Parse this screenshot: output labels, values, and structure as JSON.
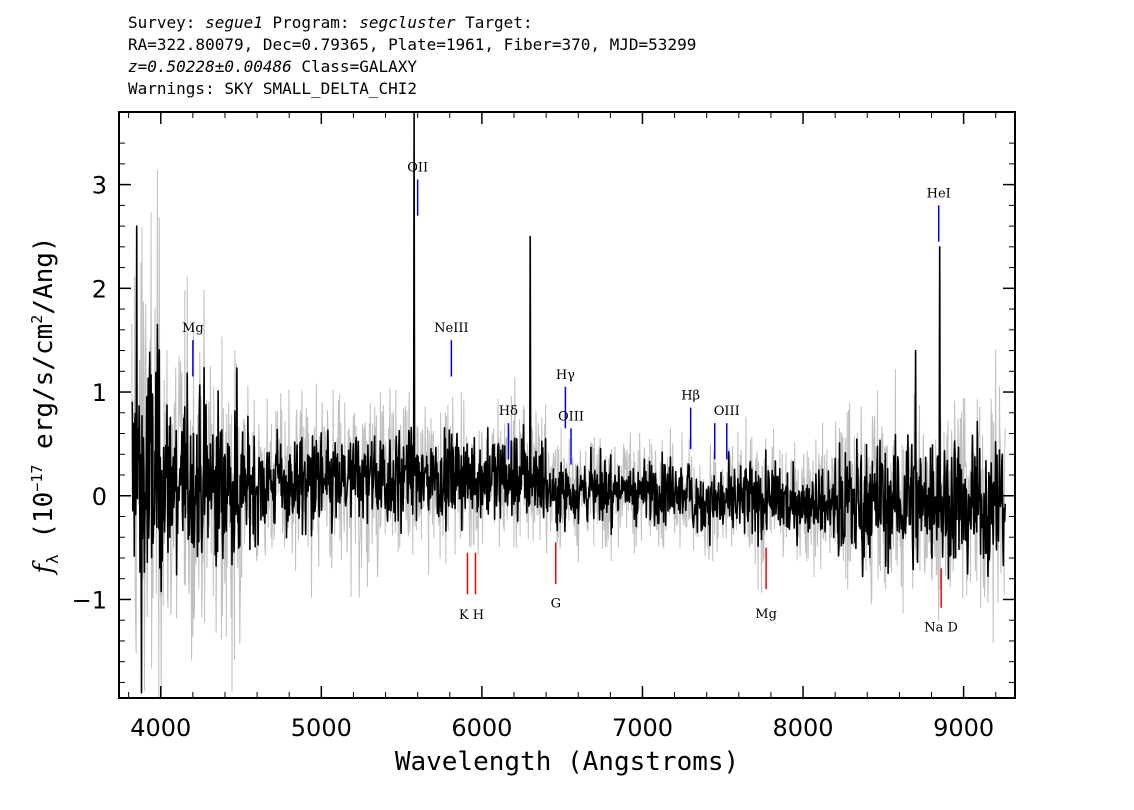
{
  "header": {
    "line1": {
      "survey_label": "Survey: ",
      "survey": "segue1",
      "program_label": " Program: ",
      "program": "segcluster",
      "target_label": " Target:"
    },
    "line2": "RA=322.80079, Dec=0.79365, Plate=1961, Fiber=370, MJD=53299",
    "line3": {
      "z": "z=0.50228±0.00486",
      "class": " Class=GALAXY"
    },
    "line4": "Warnings: SKY SMALL_DELTA_CHI2"
  },
  "chart_data": {
    "type": "line",
    "xlabel": "Wavelength (Angstroms)",
    "ylabel": "f_λ (10^-17 erg/s/cm^2/Ang)",
    "xlim": [
      3740,
      9320
    ],
    "ylim": [
      -1.95,
      3.7
    ],
    "x_ticks": [
      4000,
      5000,
      6000,
      7000,
      8000,
      9000
    ],
    "y_ticks": [
      -1,
      0,
      1,
      2,
      3
    ],
    "grid": false,
    "colors": {
      "flux": "#000000",
      "error": "#c0c0c0",
      "emission": "#0000ff",
      "absorption": "#ff0000"
    },
    "series": [
      {
        "name": "flux",
        "color": "#000000",
        "values_description": "noisy spectrum, mean ~0"
      },
      {
        "name": "error",
        "color": "#c0c0c0"
      }
    ],
    "flux_features": [
      {
        "x": 3850,
        "y": 2.6
      },
      {
        "x": 3880,
        "y": -1.9
      },
      {
        "x": 5577,
        "y": 3.7
      },
      {
        "x": 6300,
        "y": 2.5
      },
      {
        "x": 8850,
        "y": 2.4
      },
      {
        "x": 8700,
        "y": 1.4
      }
    ],
    "emission_lines": [
      {
        "label": "Mg",
        "x": 4200,
        "y0": 1.15,
        "y1": 1.5
      },
      {
        "label": "OII",
        "x": 5600,
        "y0": 2.7,
        "y1": 3.05
      },
      {
        "label": "NeIII",
        "x": 5810,
        "y0": 1.15,
        "y1": 1.5
      },
      {
        "label": "Hδ",
        "x": 6165,
        "y0": 0.35,
        "y1": 0.7
      },
      {
        "label": "Hγ",
        "x": 6520,
        "y0": 0.65,
        "y1": 1.05
      },
      {
        "label": "OIII",
        "x": 6555,
        "y0": 0.3,
        "y1": 0.65
      },
      {
        "label": "Hβ",
        "x": 7300,
        "y0": 0.45,
        "y1": 0.85
      },
      {
        "label": "",
        "x": 7450,
        "y0": 0.35,
        "y1": 0.7
      },
      {
        "label": "OIII",
        "x": 7525,
        "y0": 0.35,
        "y1": 0.7
      },
      {
        "label": "HeI",
        "x": 8845,
        "y0": 2.45,
        "y1": 2.8
      }
    ],
    "absorption_lines": [
      {
        "label": "K",
        "x": 5910,
        "y0": -0.55,
        "y1": -0.95
      },
      {
        "label": "H",
        "x": 5960,
        "y0": -0.55,
        "y1": -0.95
      },
      {
        "label": "G",
        "x": 6460,
        "y0": -0.45,
        "y1": -0.85
      },
      {
        "label": "Mg",
        "x": 7770,
        "y0": -0.5,
        "y1": -0.9
      },
      {
        "label": "Na",
        "x": 8860,
        "y0": -0.7,
        "y1": -1.08
      }
    ],
    "absorption_labels": [
      {
        "text": "K H",
        "x": 5935
      },
      {
        "text": "G",
        "x": 6460
      },
      {
        "text": "Mg",
        "x": 7770
      },
      {
        "text": "Na  D",
        "x": 8860
      }
    ]
  }
}
